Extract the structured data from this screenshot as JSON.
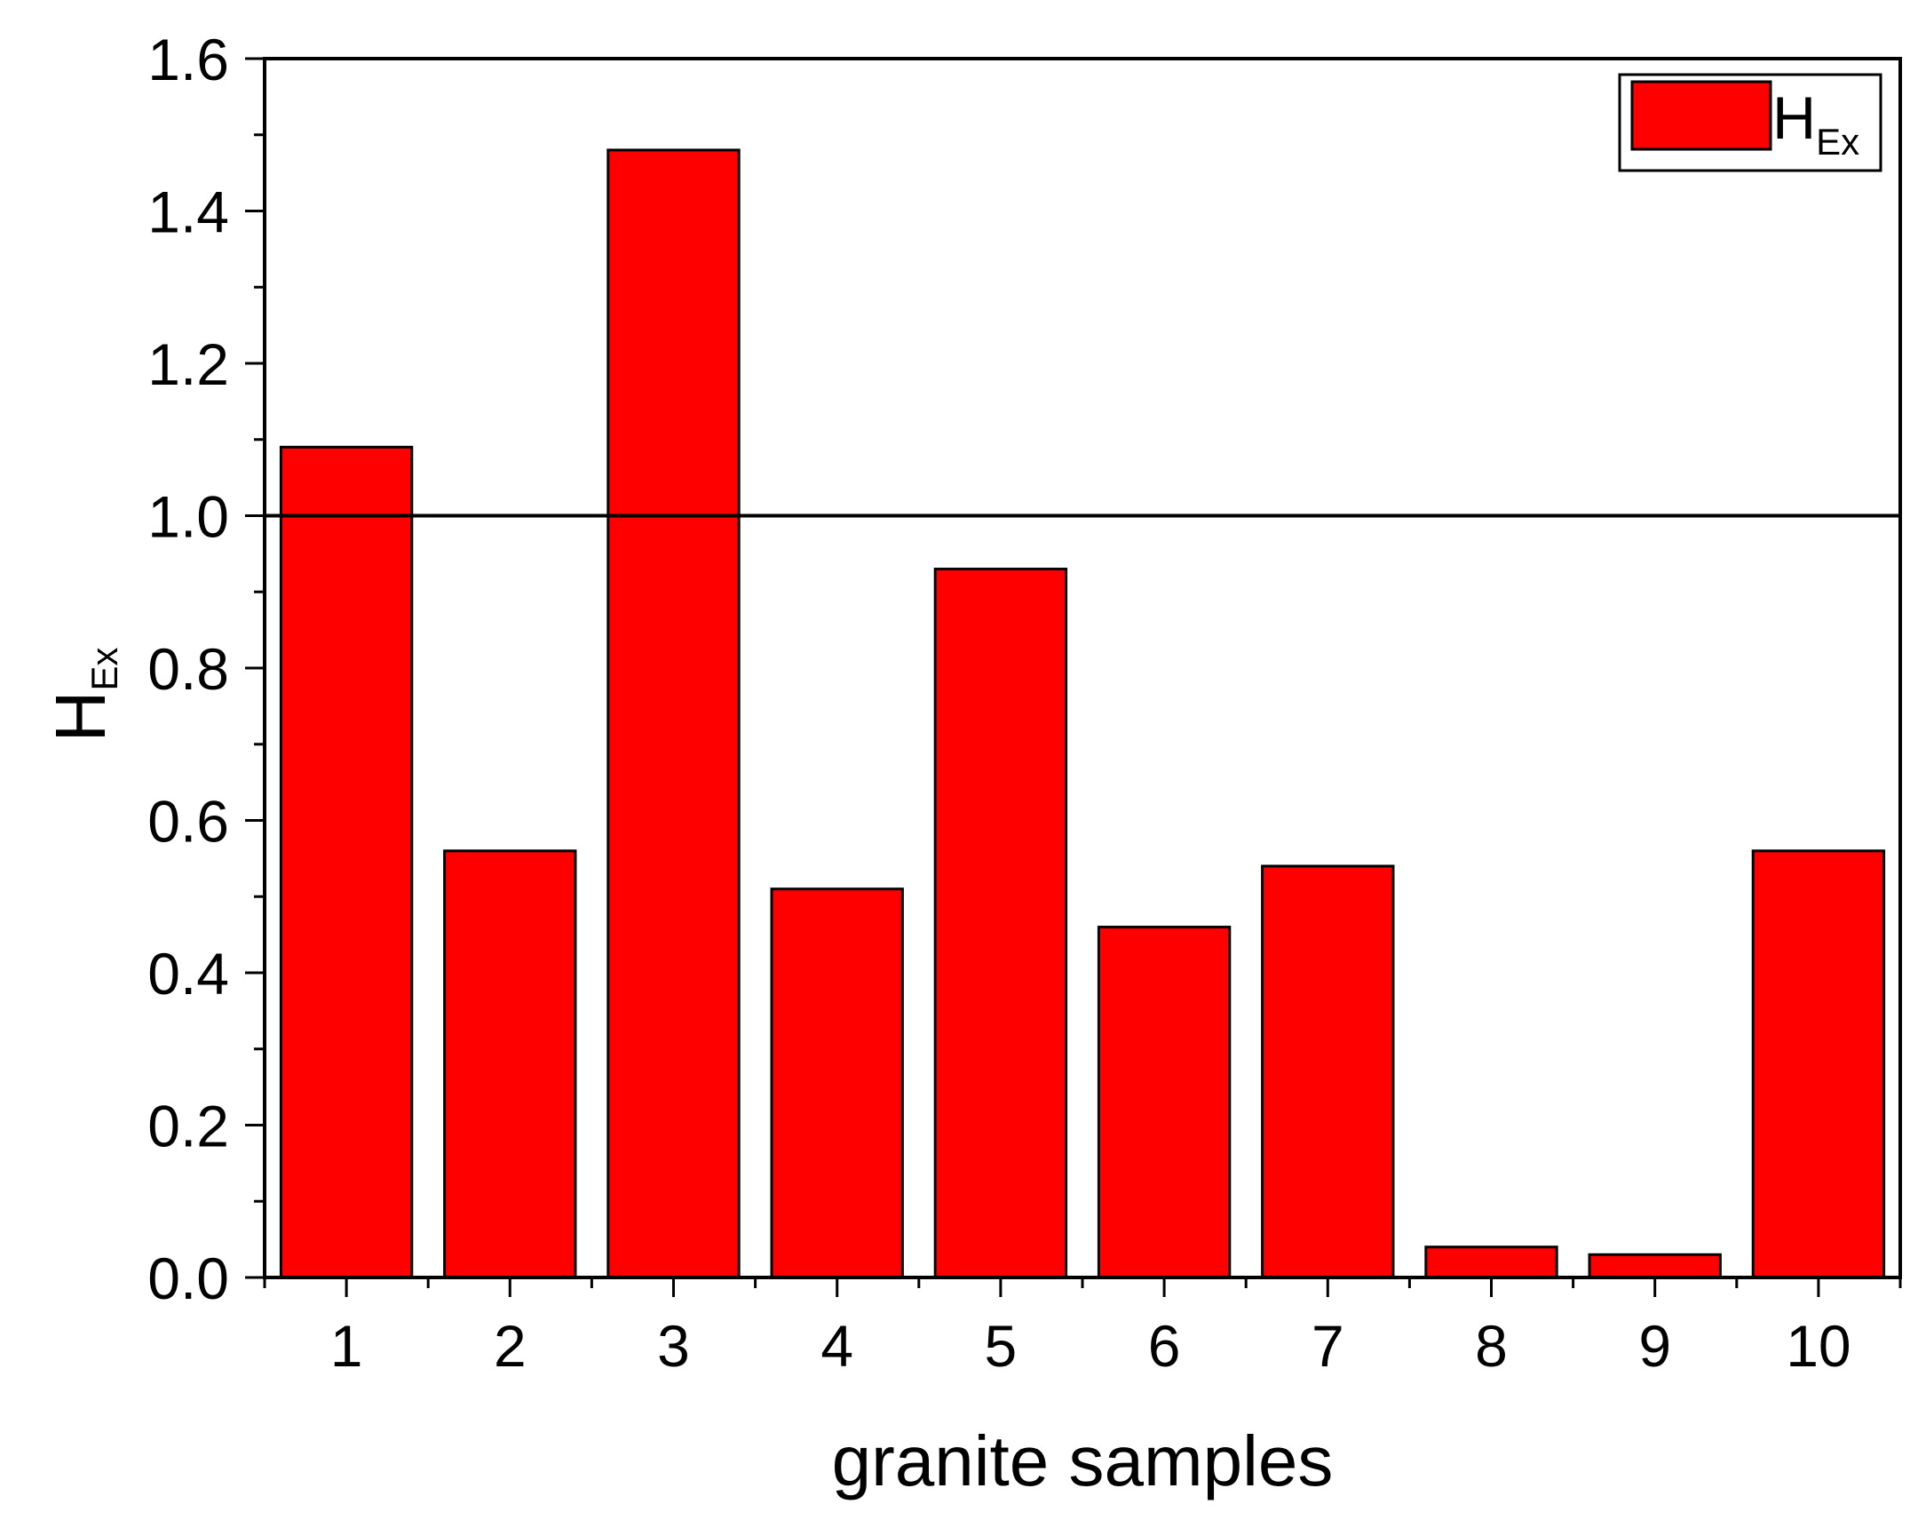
{
  "chart_data": {
    "type": "bar",
    "categories": [
      "1",
      "2",
      "3",
      "4",
      "5",
      "6",
      "7",
      "8",
      "9",
      "10"
    ],
    "series": [
      {
        "name": "H",
        "name_subscript": "Ex",
        "values": [
          1.09,
          0.56,
          1.48,
          0.51,
          0.93,
          0.46,
          0.54,
          0.04,
          0.03,
          0.56
        ]
      }
    ],
    "xlabel": "granite samples",
    "ylabel": "H",
    "ylabel_subscript": "Ex",
    "ylim": [
      0,
      1.6
    ],
    "yticks": [
      "0.0",
      "0.2",
      "0.4",
      "0.6",
      "0.8",
      "1.0",
      "1.2",
      "1.4",
      "1.6"
    ],
    "reference_line": 1.0,
    "legend_position": "top-right",
    "grid": false,
    "bar_color": "#ff0000"
  }
}
